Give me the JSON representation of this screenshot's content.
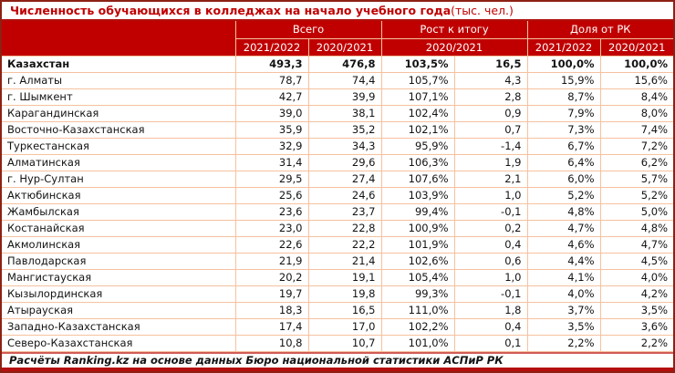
{
  "chart_data": {
    "type": "table",
    "title": "Численность обучающихся в колледжах на начало учебного года",
    "unit": " (тыс. чел.)",
    "column_groups": [
      {
        "label": "Всего",
        "span": 2
      },
      {
        "label": "Рост к итогу",
        "span": 2
      },
      {
        "label": "Доля от РК",
        "span": 2
      }
    ],
    "sub_headers": [
      "2021/2022",
      "2020/2021",
      "2020/2021",
      "2021/2022",
      "2020/2021"
    ],
    "rows": [
      {
        "region": "Казахстан",
        "bold": true,
        "values": [
          "493,3",
          "476,8",
          "103,5%",
          "16,5",
          "100,0%",
          "100,0%"
        ]
      },
      {
        "region": "г. Алматы",
        "bold": false,
        "values": [
          "78,7",
          "74,4",
          "105,7%",
          "4,3",
          "15,9%",
          "15,6%"
        ]
      },
      {
        "region": "г. Шымкент",
        "bold": false,
        "values": [
          "42,7",
          "39,9",
          "107,1%",
          "2,8",
          "8,7%",
          "8,4%"
        ]
      },
      {
        "region": "Карагандинская",
        "bold": false,
        "values": [
          "39,0",
          "38,1",
          "102,4%",
          "0,9",
          "7,9%",
          "8,0%"
        ]
      },
      {
        "region": "Восточно-Казахстанская",
        "bold": false,
        "values": [
          "35,9",
          "35,2",
          "102,1%",
          "0,7",
          "7,3%",
          "7,4%"
        ]
      },
      {
        "region": "Туркестанская",
        "bold": false,
        "values": [
          "32,9",
          "34,3",
          "95,9%",
          "-1,4",
          "6,7%",
          "7,2%"
        ]
      },
      {
        "region": "Алматинская",
        "bold": false,
        "values": [
          "31,4",
          "29,6",
          "106,3%",
          "1,9",
          "6,4%",
          "6,2%"
        ]
      },
      {
        "region": "г. Нур-Султан",
        "bold": false,
        "values": [
          "29,5",
          "27,4",
          "107,6%",
          "2,1",
          "6,0%",
          "5,7%"
        ]
      },
      {
        "region": "Актюбинская",
        "bold": false,
        "values": [
          "25,6",
          "24,6",
          "103,9%",
          "1,0",
          "5,2%",
          "5,2%"
        ]
      },
      {
        "region": "Жамбылская",
        "bold": false,
        "values": [
          "23,6",
          "23,7",
          "99,4%",
          "-0,1",
          "4,8%",
          "5,0%"
        ]
      },
      {
        "region": "Костанайская",
        "bold": false,
        "values": [
          "23,0",
          "22,8",
          "100,9%",
          "0,2",
          "4,7%",
          "4,8%"
        ]
      },
      {
        "region": "Акмолинская",
        "bold": false,
        "values": [
          "22,6",
          "22,2",
          "101,9%",
          "0,4",
          "4,6%",
          "4,7%"
        ]
      },
      {
        "region": "Павлодарская",
        "bold": false,
        "values": [
          "21,9",
          "21,4",
          "102,6%",
          "0,6",
          "4,4%",
          "4,5%"
        ]
      },
      {
        "region": "Мангистауская",
        "bold": false,
        "values": [
          "20,2",
          "19,1",
          "105,4%",
          "1,0",
          "4,1%",
          "4,0%"
        ]
      },
      {
        "region": "Кызылординская",
        "bold": false,
        "values": [
          "19,7",
          "19,8",
          "99,3%",
          "-0,1",
          "4,0%",
          "4,2%"
        ]
      },
      {
        "region": "Атырауская",
        "bold": false,
        "values": [
          "18,3",
          "16,5",
          "111,0%",
          "1,8",
          "3,7%",
          "3,5%"
        ]
      },
      {
        "region": "Западно-Казахстанская",
        "bold": false,
        "values": [
          "17,4",
          "17,0",
          "102,2%",
          "0,4",
          "3,5%",
          "3,6%"
        ]
      },
      {
        "region": "Северо-Казахстанская",
        "bold": false,
        "values": [
          "10,8",
          "10,7",
          "101,0%",
          "0,1",
          "2,2%",
          "2,2%"
        ]
      }
    ],
    "footer": "Расчёты Ranking.kz на основе данных Бюро национальной статистики АСПиР РК"
  },
  "colors": {
    "header_bg": "#c00000",
    "title_text": "#c00000",
    "cell_border": "#f6c19e",
    "frame_border": "#8d2014"
  }
}
